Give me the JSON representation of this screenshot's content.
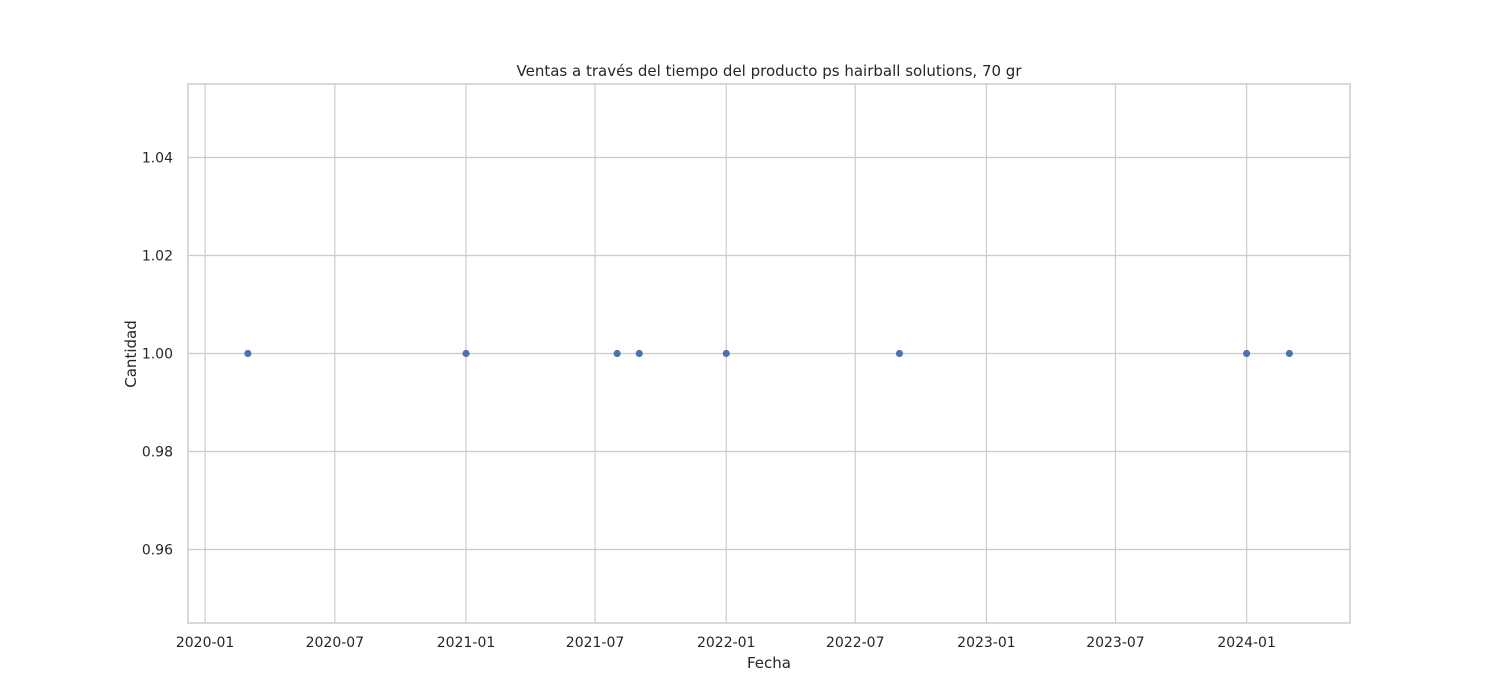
{
  "chart_data": {
    "type": "scatter",
    "title": "Ventas a través del tiempo del producto ps hairball solutions, 70 gr",
    "xlabel": "Fecha",
    "ylabel": "Cantidad",
    "x_type": "date",
    "xlim": [
      "2019-12-08",
      "2024-05-25"
    ],
    "ylim": [
      0.945,
      1.055
    ],
    "x_ticks": [
      "2020-01-01",
      "2020-07-01",
      "2021-01-01",
      "2021-07-01",
      "2022-01-01",
      "2022-07-01",
      "2023-01-01",
      "2023-07-01",
      "2024-01-01"
    ],
    "x_tick_labels": [
      "2020-01",
      "2020-07",
      "2021-01",
      "2021-07",
      "2022-01",
      "2022-07",
      "2023-01",
      "2023-07",
      "2024-01"
    ],
    "y_ticks": [
      0.96,
      0.98,
      1.0,
      1.02,
      1.04
    ],
    "y_tick_labels": [
      "0.96",
      "0.98",
      "1.00",
      "1.02",
      "1.04"
    ],
    "grid": true,
    "series": [
      {
        "color": "#4c72b0",
        "points": [
          {
            "x": "2020-03-01",
            "y": 1.0
          },
          {
            "x": "2021-01-01",
            "y": 1.0
          },
          {
            "x": "2021-08-01",
            "y": 1.0
          },
          {
            "x": "2021-09-01",
            "y": 1.0
          },
          {
            "x": "2022-01-01",
            "y": 1.0
          },
          {
            "x": "2022-09-01",
            "y": 1.0
          },
          {
            "x": "2024-01-01",
            "y": 1.0
          },
          {
            "x": "2024-03-01",
            "y": 1.0
          }
        ]
      }
    ]
  }
}
